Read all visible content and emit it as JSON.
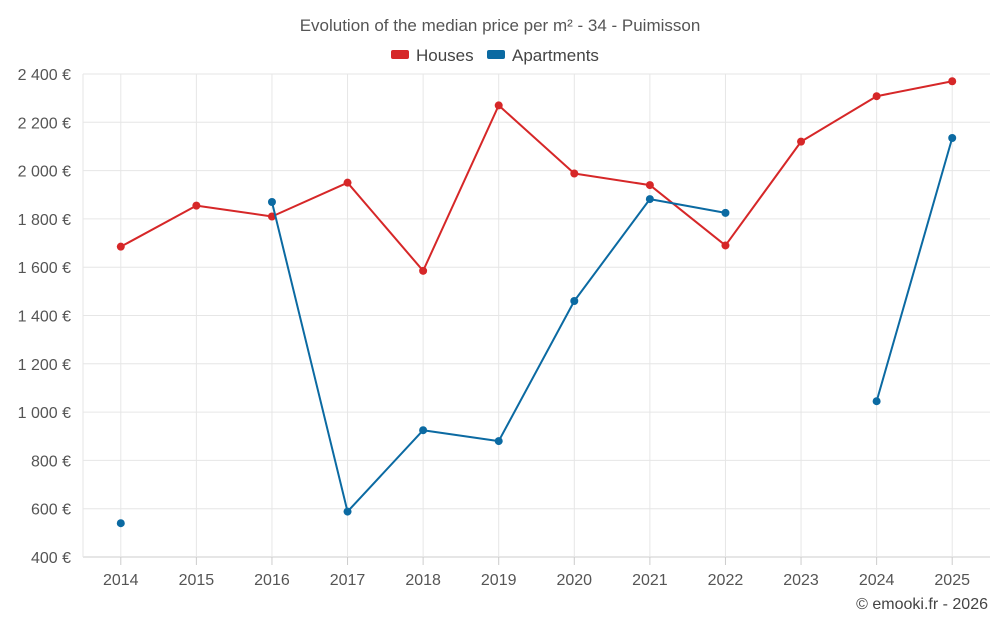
{
  "chart_data": {
    "type": "line",
    "title": "Evolution of the median price per m² - 34 - Puimisson",
    "categories": [
      "2014",
      "2015",
      "2016",
      "2017",
      "2018",
      "2019",
      "2020",
      "2021",
      "2022",
      "2023",
      "2024",
      "2025"
    ],
    "series": [
      {
        "name": "Houses",
        "color": "#d62728",
        "values": [
          1685,
          1855,
          1810,
          1950,
          1585,
          2270,
          1988,
          1940,
          1690,
          2120,
          2308,
          2370
        ]
      },
      {
        "name": "Apartments",
        "color": "#0b6aa2",
        "values": [
          540,
          null,
          1870,
          588,
          925,
          880,
          1460,
          1882,
          1825,
          null,
          1045,
          2135
        ]
      }
    ],
    "yticks": [
      400,
      600,
      800,
      1000,
      1200,
      1400,
      1600,
      1800,
      2000,
      2200,
      2400
    ],
    "ytick_labels": [
      "400 €",
      "600 €",
      "800 €",
      "1 000 €",
      "1 200 €",
      "1 400 €",
      "1 600 €",
      "1 800 €",
      "2 000 €",
      "2 200 €",
      "2 400 €"
    ],
    "ylim": [
      400,
      2400
    ],
    "xlabel": "",
    "ylabel": "",
    "grid": true,
    "legend_position": "top-center"
  },
  "credit": "© emooki.fr - 2026"
}
